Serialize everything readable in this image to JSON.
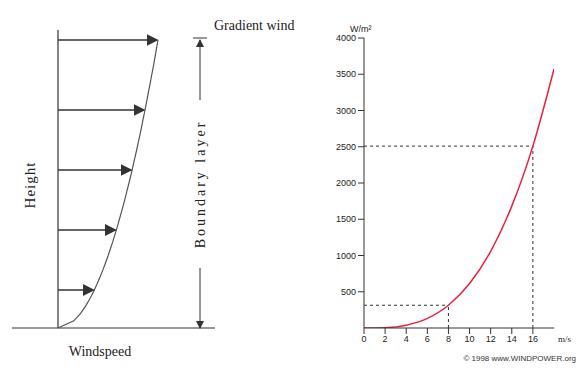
{
  "diagram": {
    "title": "Gradient wind",
    "y_label": "Height",
    "x_label": "Windspeed",
    "bracket_label": "Boundary layer"
  },
  "chart_data": {
    "type": "line",
    "y_label": "W/m²",
    "x_label": "m/s",
    "source": "© 1998 www.WINDPOWER.org",
    "x": [
      0,
      2,
      4,
      6,
      8,
      10,
      12,
      14,
      16,
      18
    ],
    "values": [
      0,
      5,
      39,
      132,
      314,
      613,
      1058,
      1681,
      2509,
      3572
    ],
    "color": "#e8203c",
    "xlim": [
      0,
      18
    ],
    "xticks": [
      0,
      2,
      4,
      6,
      8,
      10,
      12,
      14,
      16
    ],
    "ylim": [
      0,
      4000
    ],
    "yticks": [
      500,
      1000,
      1500,
      2000,
      2500,
      3000,
      3500,
      4000
    ],
    "grid": false,
    "reference_points": [
      {
        "x": 8,
        "y": 314
      },
      {
        "x": 16,
        "y": 2509
      }
    ]
  }
}
